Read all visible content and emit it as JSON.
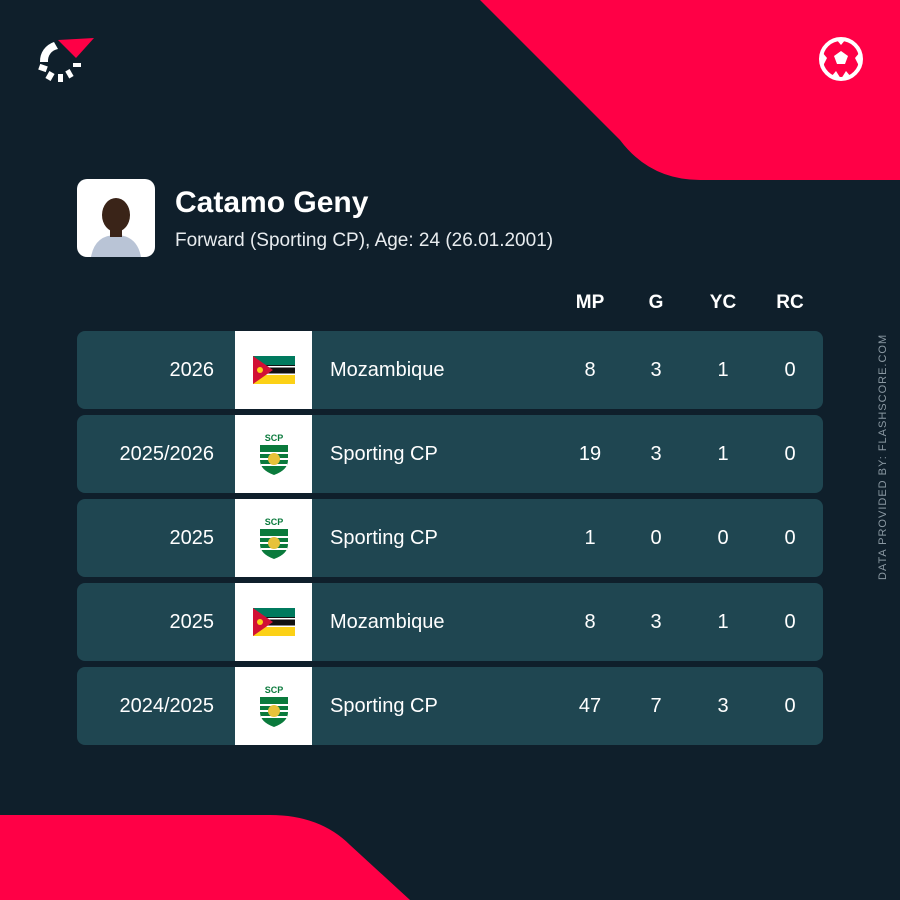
{
  "player": {
    "name": "Catamo Geny",
    "details": "Forward (Sporting CP), Age: 24 (26.01.2001)"
  },
  "columns": [
    "MP",
    "G",
    "YC",
    "RC"
  ],
  "rows": [
    {
      "season": "2026",
      "team": "Mozambique",
      "crest": "mozambique-flag",
      "mp": "8",
      "g": "3",
      "yc": "1",
      "rc": "0"
    },
    {
      "season": "2025/2026",
      "team": "Sporting CP",
      "crest": "sporting-cp-crest",
      "mp": "19",
      "g": "3",
      "yc": "1",
      "rc": "0"
    },
    {
      "season": "2025",
      "team": "Sporting CP",
      "crest": "sporting-cp-crest",
      "mp": "1",
      "g": "0",
      "yc": "0",
      "rc": "0"
    },
    {
      "season": "2025",
      "team": "Mozambique",
      "crest": "mozambique-flag",
      "mp": "8",
      "g": "3",
      "yc": "1",
      "rc": "0"
    },
    {
      "season": "2024/2025",
      "team": "Sporting CP",
      "crest": "sporting-cp-crest",
      "mp": "47",
      "g": "7",
      "yc": "3",
      "rc": "0"
    }
  ],
  "credit": "DATA PROVIDED BY: FLASHSCORE.COM",
  "colors": {
    "background": "#0f1f2b",
    "accent": "#ff0046",
    "row": "#1f4651"
  }
}
